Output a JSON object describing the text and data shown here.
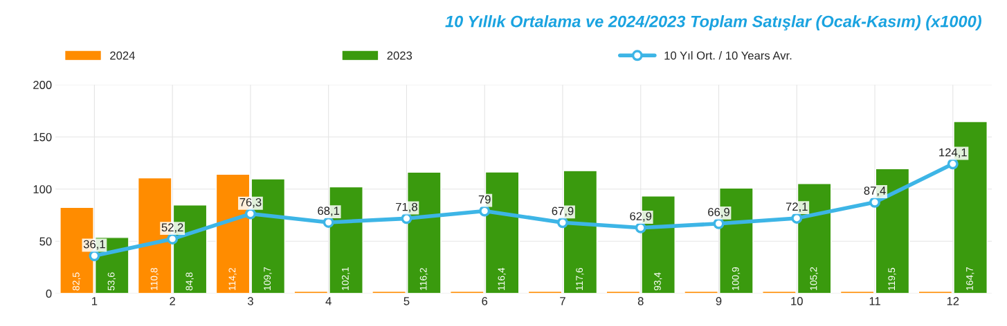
{
  "chart_data": {
    "type": "bar",
    "title": "10 Yıllık Ortalama ve 2024/2023 Toplam Satışlar (Ocak-Kasım) (x1000)",
    "categories": [
      "1",
      "2",
      "3",
      "4",
      "5",
      "6",
      "7",
      "8",
      "9",
      "10",
      "11",
      "12"
    ],
    "series": [
      {
        "name": "2024",
        "color": "#ff8c00",
        "values": [
          82.5,
          110.8,
          114.2,
          2,
          2,
          2,
          2,
          2,
          2,
          2,
          2,
          2
        ],
        "value_labels": [
          "82,5",
          "110,8",
          "114,2",
          null,
          null,
          null,
          null,
          null,
          null,
          null,
          null,
          null
        ]
      },
      {
        "name": "2023",
        "color": "#3a9a0e",
        "values": [
          53.6,
          84.8,
          109.7,
          102.1,
          116.2,
          116.4,
          117.6,
          93.4,
          100.9,
          105.2,
          119.5,
          164.7
        ],
        "value_labels": [
          "53,6",
          "84,8",
          "109,7",
          "102,1",
          "116,2",
          "116,4",
          "117,6",
          "93,4",
          "100,9",
          "105,2",
          "119,5",
          "164,7"
        ]
      },
      {
        "name": "10 Yıl Ort. / 10 Years Avr.",
        "type": "line",
        "color": "#3db5e6",
        "marker": "circle",
        "values": [
          36.1,
          52.2,
          76.3,
          68.1,
          71.8,
          79,
          67.9,
          62.9,
          66.9,
          72.1,
          87.4,
          124.1
        ],
        "value_labels": [
          "36,1",
          "52,2",
          "76,3",
          "68,1",
          "71,8",
          "79",
          "67,9",
          "62,9",
          "66,9",
          "72,1",
          "87,4",
          "124,1"
        ]
      }
    ],
    "ylim": [
      0,
      200
    ],
    "yticks": [
      0,
      50,
      100,
      150,
      200
    ],
    "grid": true,
    "legend": "top"
  }
}
